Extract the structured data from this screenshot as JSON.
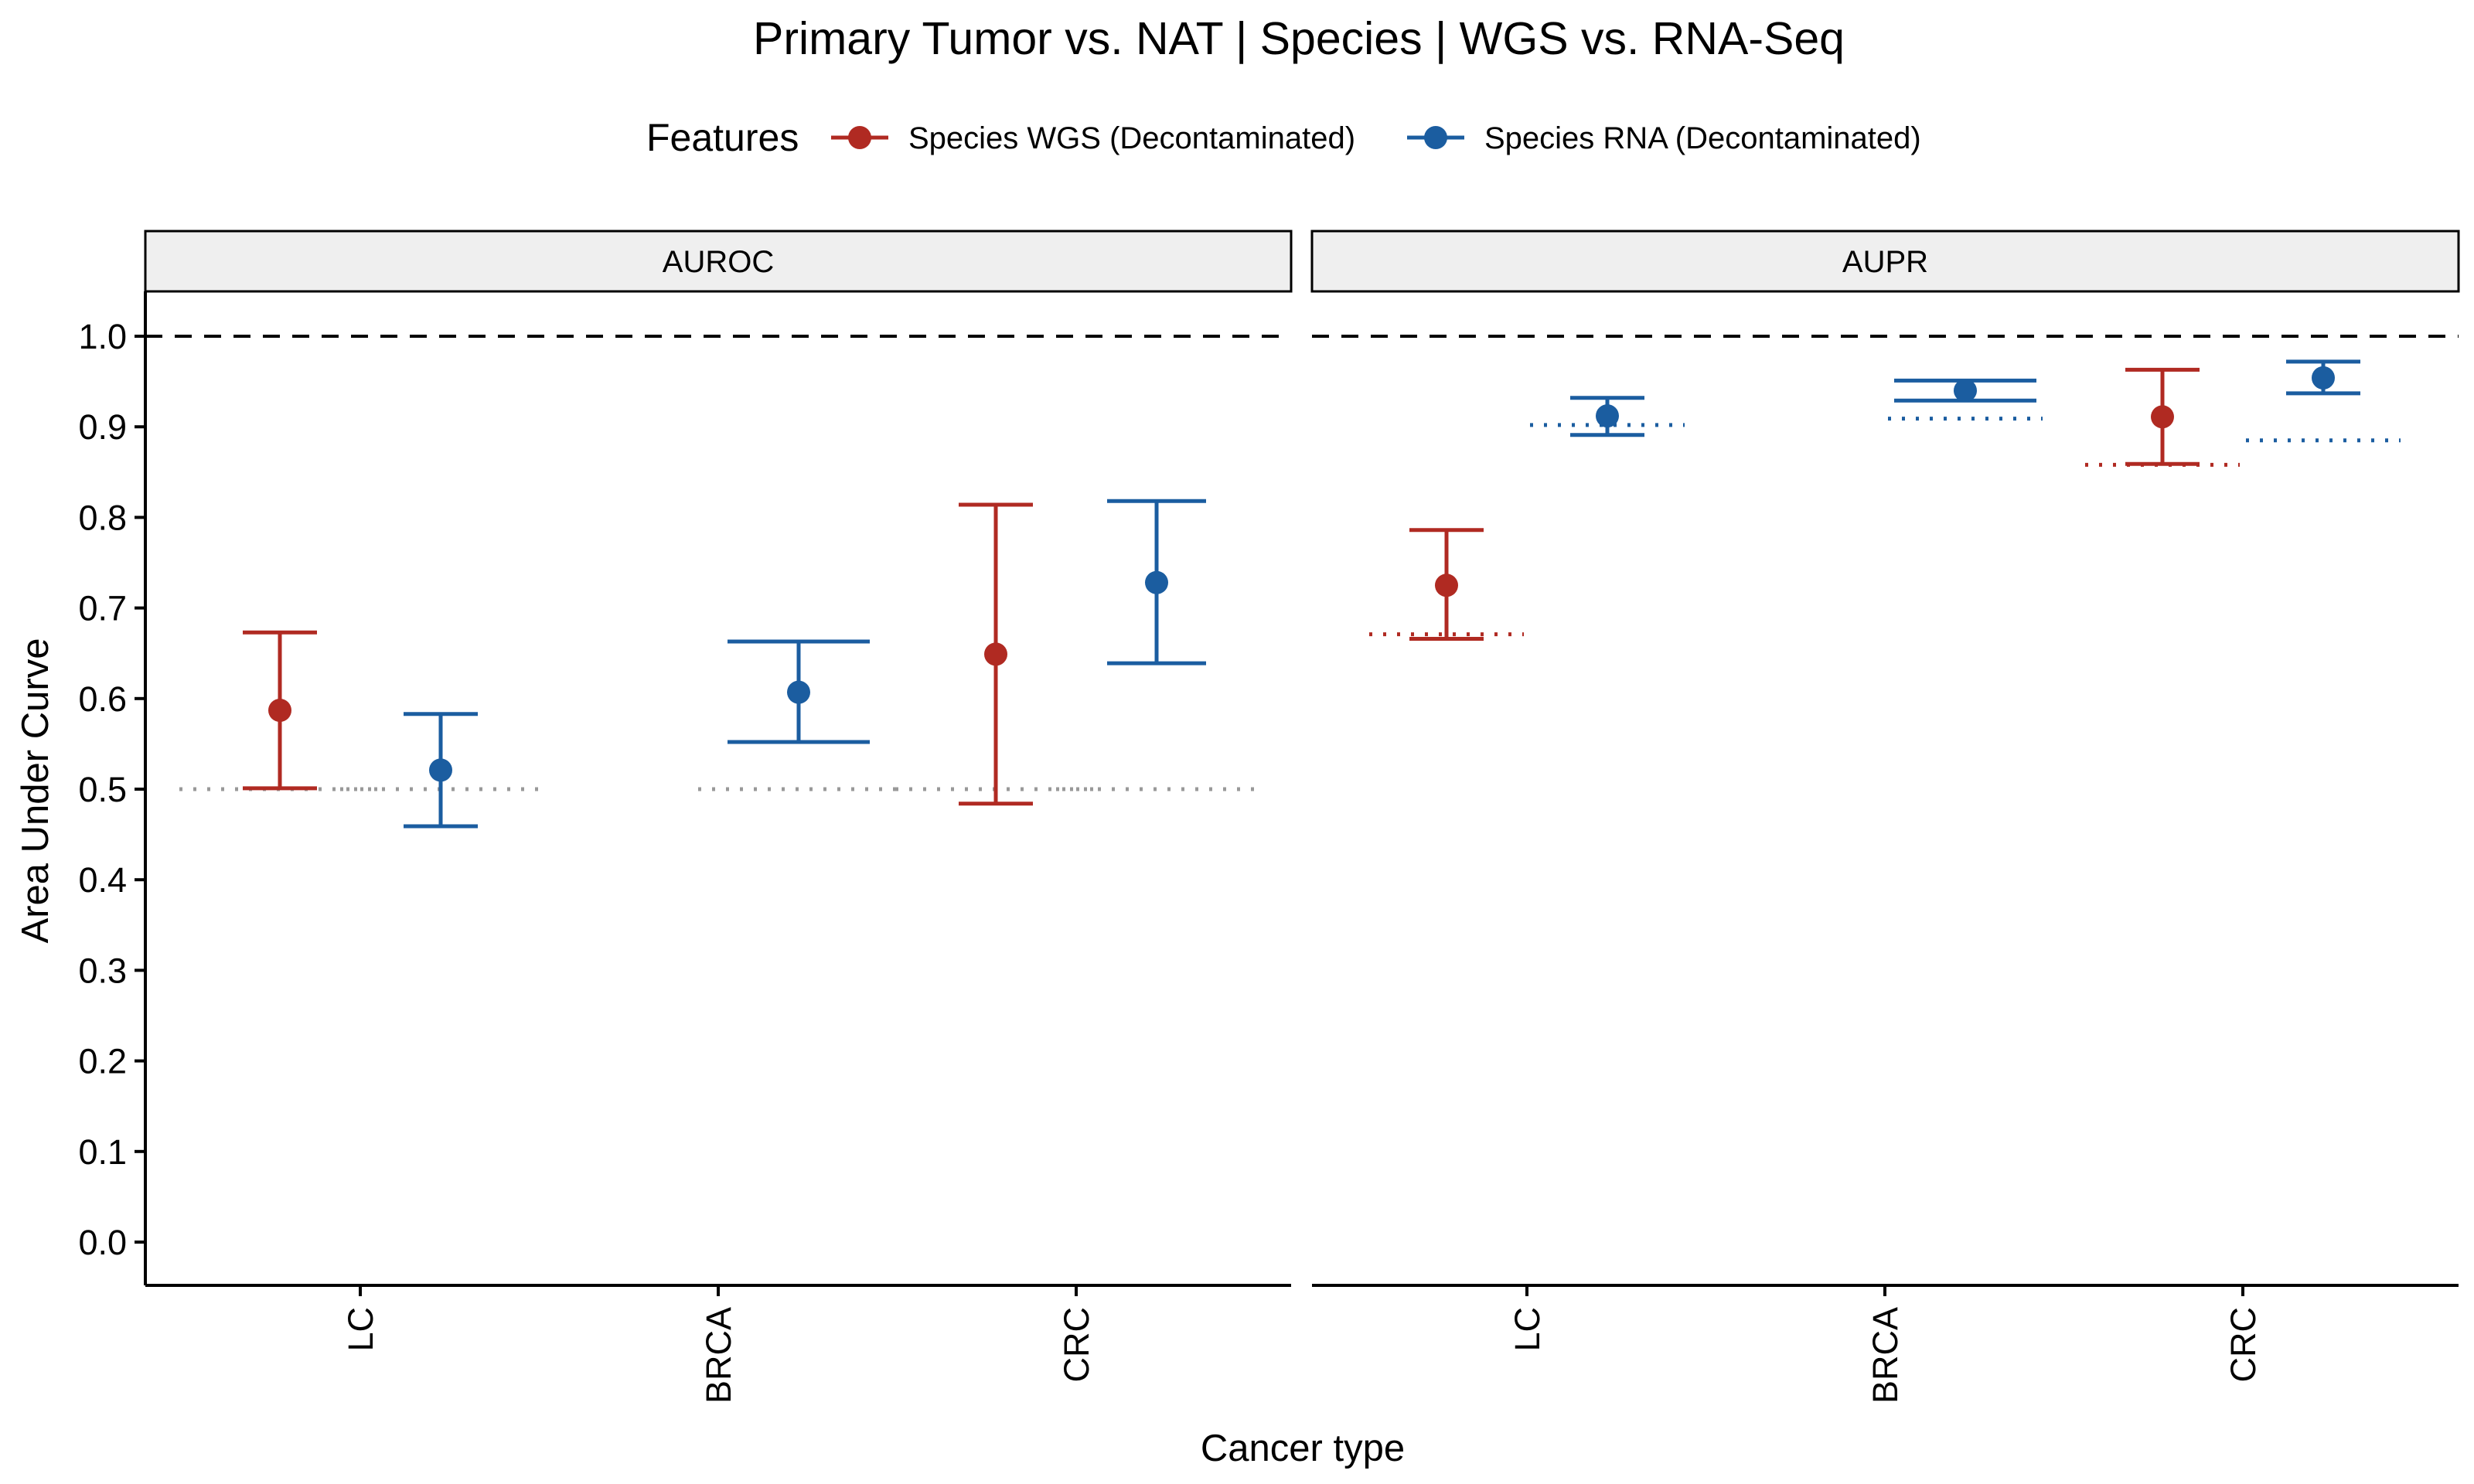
{
  "chart_data": {
    "type": "errorbar",
    "title": "Primary Tumor vs. NAT | Species | WGS vs. RNA-Seq",
    "xlabel": "Cancer type",
    "ylabel": "Area Under Curve",
    "ylim": [
      -0.05,
      1.05
    ],
    "yticks": [
      "0.0",
      "0.1",
      "0.2",
      "0.3",
      "0.4",
      "0.5",
      "0.6",
      "0.7",
      "0.8",
      "0.9",
      "1.0"
    ],
    "categories": [
      "LC",
      "BRCA",
      "CRC"
    ],
    "legend": {
      "title": "Features",
      "position": "top"
    },
    "series": [
      {
        "name": "Species WGS (Decontaminated)",
        "color": "#b02a22"
      },
      {
        "name": "Species RNA (Decontaminated)",
        "color": "#1b5da0"
      }
    ],
    "reference_line": 1.0,
    "panels": [
      {
        "label": "AUROC",
        "points": [
          {
            "category": "LC",
            "series": 0,
            "value": 0.587,
            "lower": 0.501,
            "upper": 0.673,
            "null": 0.5
          },
          {
            "category": "LC",
            "series": 1,
            "value": 0.521,
            "lower": 0.459,
            "upper": 0.583,
            "null": 0.5
          },
          {
            "category": "BRCA",
            "series": 1,
            "value": 0.607,
            "lower": 0.552,
            "upper": 0.663,
            "null": 0.5
          },
          {
            "category": "CRC",
            "series": 0,
            "value": 0.649,
            "lower": 0.484,
            "upper": 0.814,
            "null": 0.5
          },
          {
            "category": "CRC",
            "series": 1,
            "value": 0.728,
            "lower": 0.639,
            "upper": 0.818,
            "null": 0.5
          }
        ],
        "null_color": "#999999"
      },
      {
        "label": "AUPR",
        "points": [
          {
            "category": "LC",
            "series": 0,
            "value": 0.725,
            "lower": 0.666,
            "upper": 0.786,
            "null": 0.671
          },
          {
            "category": "LC",
            "series": 1,
            "value": 0.912,
            "lower": 0.891,
            "upper": 0.932,
            "null": 0.902
          },
          {
            "category": "BRCA",
            "series": 1,
            "value": 0.94,
            "lower": 0.929,
            "upper": 0.951,
            "null": 0.909
          },
          {
            "category": "CRC",
            "series": 0,
            "value": 0.911,
            "lower": 0.859,
            "upper": 0.963,
            "null": 0.858
          },
          {
            "category": "CRC",
            "series": 1,
            "value": 0.954,
            "lower": 0.937,
            "upper": 0.972,
            "null": 0.885
          }
        ],
        "null_color": "series"
      }
    ]
  }
}
